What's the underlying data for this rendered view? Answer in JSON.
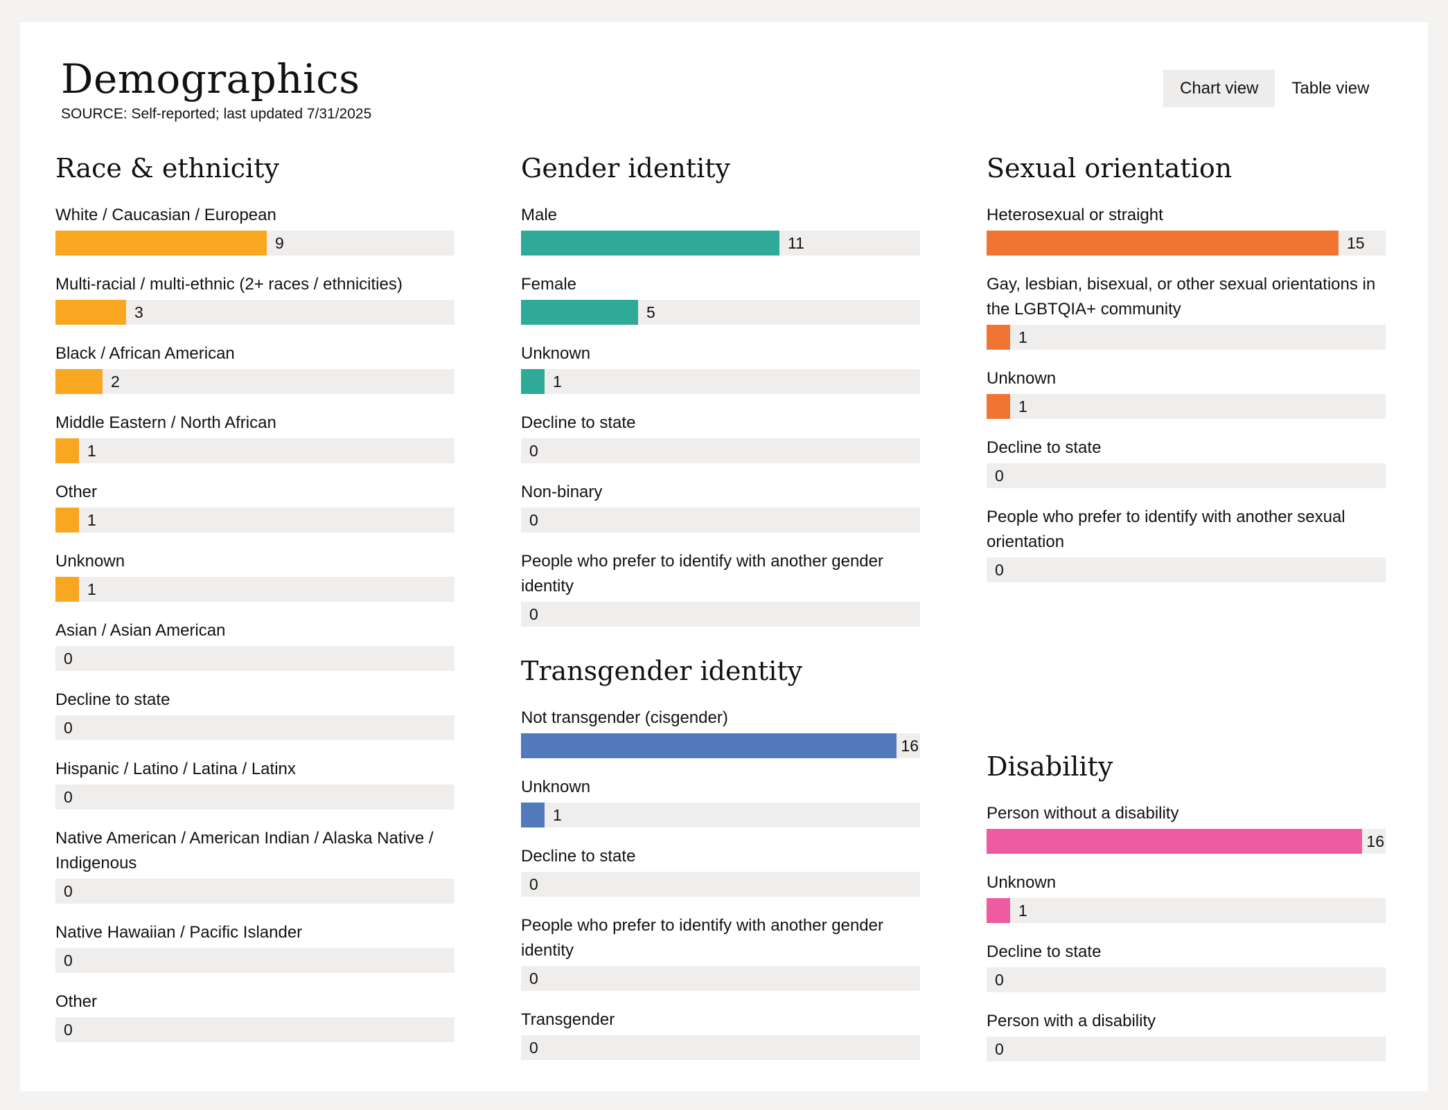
{
  "header": {
    "title": "Demographics",
    "subtitle": "SOURCE: Self-reported; last updated 7/31/2025",
    "chart_view_label": "Chart view",
    "table_view_label": "Table view",
    "active_view": "chart"
  },
  "chart_data": [
    {
      "type": "bar",
      "orientation": "horizontal",
      "title": "Race & ethnicity",
      "color": "#f9a620",
      "xlim": [
        0,
        17
      ],
      "categories": [
        "White / Caucasian / European",
        "Multi-racial / multi-ethnic (2+ races / ethnicities)",
        "Black / African American",
        "Middle Eastern / North African",
        "Other",
        "Unknown",
        "Asian / Asian American",
        "Decline to state",
        "Hispanic / Latino / Latina / Latinx",
        "Native American / American Indian / Alaska Native / Indigenous",
        "Native Hawaiian / Pacific Islander",
        "Other"
      ],
      "values": [
        9,
        3,
        2,
        1,
        1,
        1,
        0,
        0,
        0,
        0,
        0,
        0
      ]
    },
    {
      "type": "bar",
      "orientation": "horizontal",
      "title": "Gender identity",
      "color": "#2faa98",
      "xlim": [
        0,
        17
      ],
      "categories": [
        "Male",
        "Female",
        "Unknown",
        "Decline to state",
        "Non-binary",
        "People who prefer to identify with another gender identity"
      ],
      "values": [
        11,
        5,
        1,
        0,
        0,
        0
      ]
    },
    {
      "type": "bar",
      "orientation": "horizontal",
      "title": "Transgender identity",
      "color": "#5179bc",
      "xlim": [
        0,
        17
      ],
      "categories": [
        "Not transgender (cisgender)",
        "Unknown",
        "Decline to state",
        "People who prefer to identify with another gender identity",
        "Transgender"
      ],
      "values": [
        16,
        1,
        0,
        0,
        0
      ]
    },
    {
      "type": "bar",
      "orientation": "horizontal",
      "title": "Sexual orientation",
      "color": "#f07432",
      "xlim": [
        0,
        17
      ],
      "categories": [
        "Heterosexual or straight",
        "Gay, lesbian, bisexual, or other sexual orientations in the LGBTQIA+ community",
        "Unknown",
        "Decline to state",
        "People who prefer to identify with another sexual orientation"
      ],
      "values": [
        15,
        1,
        1,
        0,
        0
      ]
    },
    {
      "type": "bar",
      "orientation": "horizontal",
      "title": "Disability",
      "color": "#ef5ba1",
      "xlim": [
        0,
        17
      ],
      "categories": [
        "Person without a disability",
        "Unknown",
        "Decline to state",
        "Person with a disability"
      ],
      "values": [
        16,
        1,
        0,
        0
      ]
    }
  ]
}
